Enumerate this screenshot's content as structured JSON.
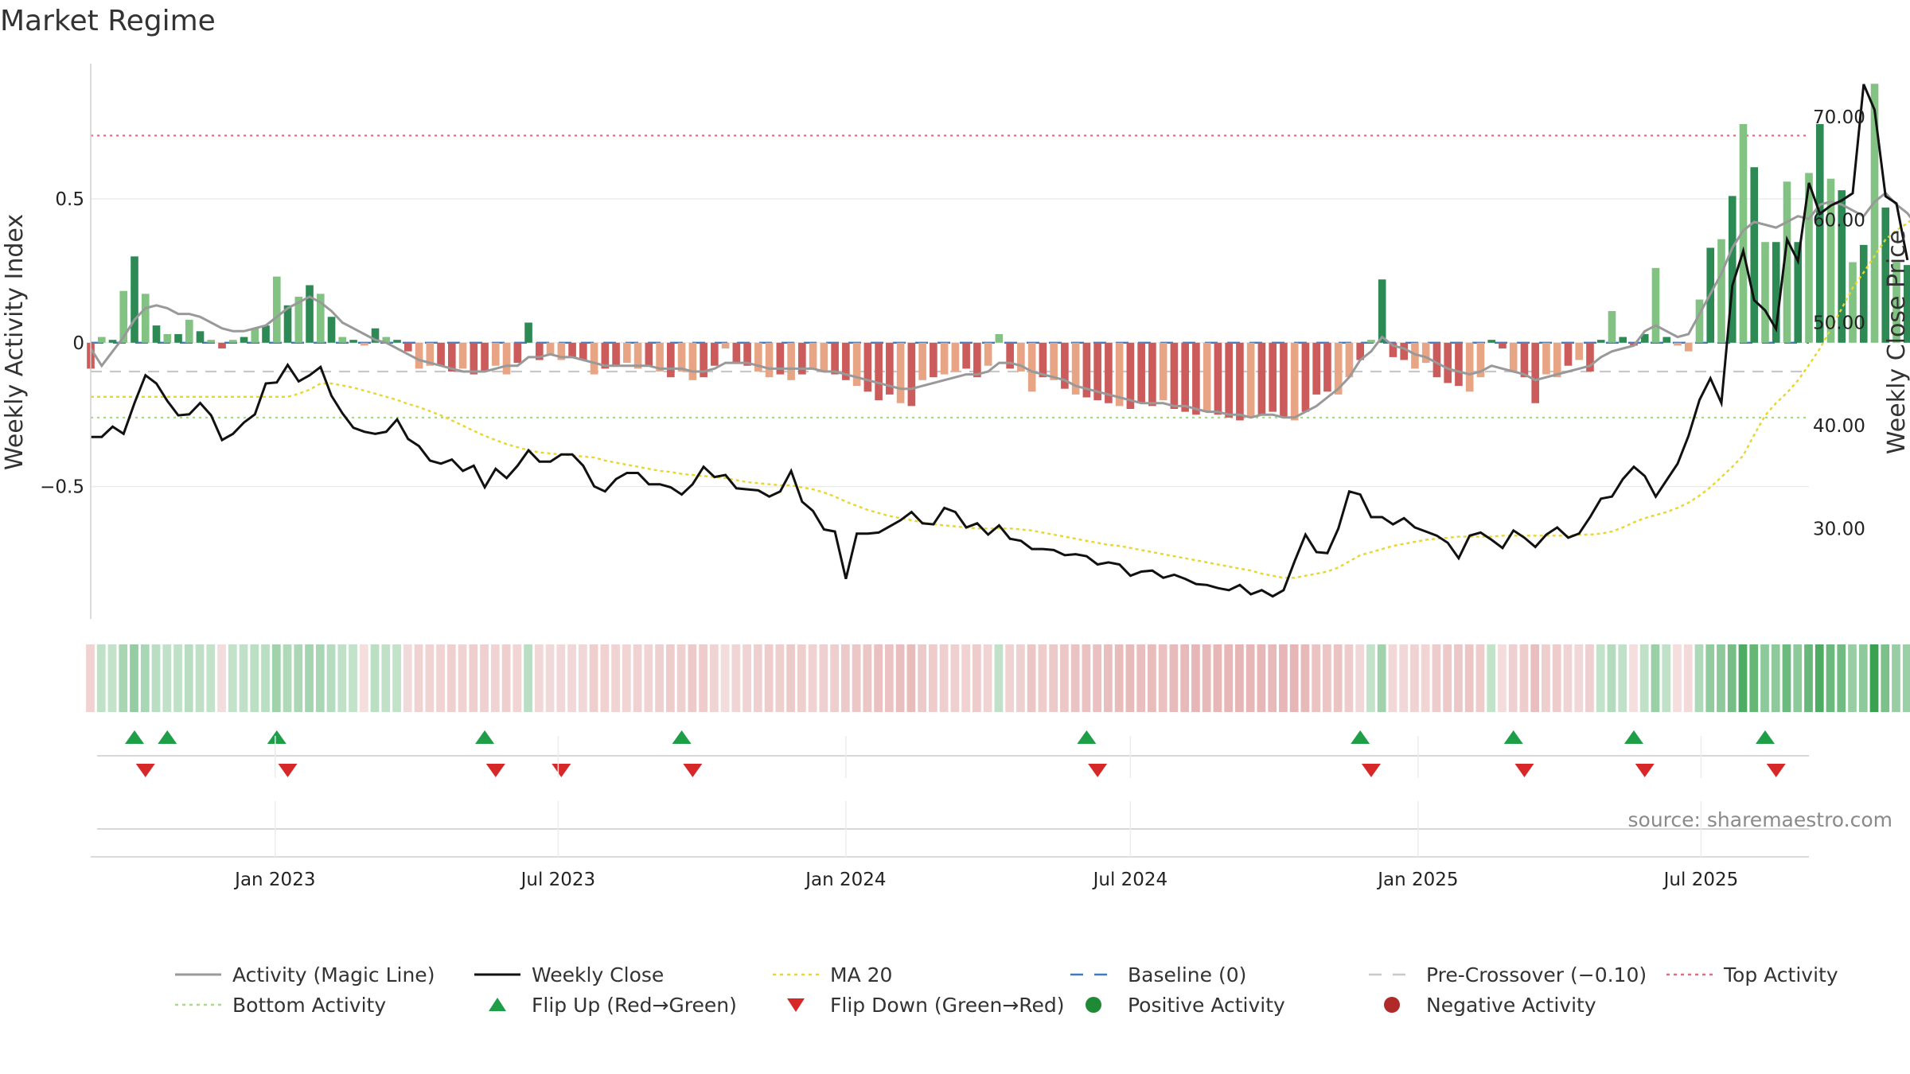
{
  "chart_data": {
    "type": "bar",
    "title": "Market Regime",
    "ylabel_left": "Weekly Activity Index",
    "ylabel_right": "Weekly Close Price",
    "source": "source: sharemaestro.com",
    "left_axis": {
      "ylim": [
        -0.96,
        0.97
      ],
      "ticks": [
        0.5,
        0,
        -0.5
      ],
      "tick_labels": [
        "0.5",
        "0",
        "−0.5"
      ]
    },
    "right_axis": {
      "ylim": [
        21.2,
        75.2
      ],
      "ticks": [
        70,
        60,
        50,
        40,
        30
      ],
      "tick_labels": [
        "70.00",
        "60.00",
        "50.00",
        "40.00",
        "30.00"
      ]
    },
    "x_axis": {
      "range": [
        "2022-09-05",
        "2025-09-08"
      ],
      "ticks": [
        "2023-01-01",
        "2023-07-01",
        "2024-01-01",
        "2024-07-01",
        "2025-01-01",
        "2025-07-01"
      ],
      "tick_labels": [
        "Jan 2023",
        "Jul 2023",
        "Jan 2024",
        "Jul 2024",
        "Jan 2025",
        "Jul 2025"
      ]
    },
    "reference_lines": {
      "baseline": 0,
      "pre_crossover": -0.1,
      "top_activity": 0.72,
      "bottom_activity": -0.26
    },
    "series": [
      {
        "name": "Weekly Activity Index (bars)",
        "x_start": "2022-09-05",
        "step_days": 7,
        "values": [
          -0.09,
          0.02,
          0.01,
          0.18,
          0.3,
          0.17,
          0.06,
          0.03,
          0.03,
          0.08,
          0.04,
          0.01,
          -0.02,
          0.01,
          0.02,
          0.05,
          0.06,
          0.23,
          0.13,
          0.16,
          0.2,
          0.17,
          0.09,
          0.02,
          0.01,
          -0.01,
          0.05,
          0.02,
          0.01,
          -0.03,
          -0.09,
          -0.08,
          -0.08,
          -0.1,
          -0.09,
          -0.11,
          -0.1,
          -0.08,
          -0.11,
          -0.07,
          0.07,
          -0.06,
          -0.04,
          -0.06,
          -0.05,
          -0.06,
          -0.11,
          -0.09,
          -0.08,
          -0.07,
          -0.09,
          -0.08,
          -0.1,
          -0.12,
          -0.1,
          -0.13,
          -0.12,
          -0.08,
          -0.02,
          -0.07,
          -0.08,
          -0.1,
          -0.12,
          -0.11,
          -0.13,
          -0.11,
          -0.09,
          -0.1,
          -0.11,
          -0.13,
          -0.15,
          -0.17,
          -0.2,
          -0.18,
          -0.21,
          -0.22,
          -0.13,
          -0.12,
          -0.11,
          -0.1,
          -0.09,
          -0.12,
          -0.08,
          0.03,
          -0.09,
          -0.1,
          -0.17,
          -0.12,
          -0.13,
          -0.16,
          -0.18,
          -0.19,
          -0.2,
          -0.21,
          -0.22,
          -0.23,
          -0.21,
          -0.22,
          -0.2,
          -0.23,
          -0.24,
          -0.25,
          -0.24,
          -0.25,
          -0.26,
          -0.27,
          -0.26,
          -0.25,
          -0.24,
          -0.26,
          -0.27,
          -0.24,
          -0.18,
          -0.17,
          -0.18,
          -0.12,
          -0.06,
          0.01,
          0.22,
          -0.05,
          -0.06,
          -0.09,
          -0.07,
          -0.12,
          -0.14,
          -0.15,
          -0.17,
          -0.12,
          0.01,
          -0.02,
          -0.1,
          -0.12,
          -0.21,
          -0.11,
          -0.12,
          -0.08,
          -0.06,
          -0.1,
          0.01,
          0.11,
          0.02,
          -0.01,
          0.03,
          0.26,
          0.02,
          -0.01,
          -0.03,
          0.15,
          0.33,
          0.36,
          0.51,
          0.76,
          0.61,
          0.35,
          0.35,
          0.56,
          0.35,
          0.59,
          0.76,
          0.57,
          0.53,
          0.28,
          0.34,
          0.9,
          0.47,
          0.28,
          0.27,
          0.18
        ]
      },
      {
        "name": "Activity (Magic Line)",
        "x_start": "2022-09-05",
        "step_days": 7,
        "values": [
          -0.02,
          -0.08,
          -0.03,
          0.02,
          0.08,
          0.12,
          0.13,
          0.12,
          0.1,
          0.1,
          0.09,
          0.07,
          0.05,
          0.04,
          0.04,
          0.05,
          0.06,
          0.09,
          0.12,
          0.14,
          0.16,
          0.14,
          0.11,
          0.07,
          0.05,
          0.03,
          0.01,
          0.0,
          -0.02,
          -0.04,
          -0.06,
          -0.07,
          -0.08,
          -0.09,
          -0.1,
          -0.1,
          -0.1,
          -0.09,
          -0.08,
          -0.08,
          -0.05,
          -0.05,
          -0.04,
          -0.05,
          -0.05,
          -0.06,
          -0.07,
          -0.08,
          -0.08,
          -0.08,
          -0.08,
          -0.08,
          -0.09,
          -0.09,
          -0.09,
          -0.1,
          -0.1,
          -0.09,
          -0.07,
          -0.07,
          -0.07,
          -0.08,
          -0.09,
          -0.09,
          -0.09,
          -0.09,
          -0.09,
          -0.1,
          -0.1,
          -0.11,
          -0.12,
          -0.13,
          -0.14,
          -0.15,
          -0.16,
          -0.16,
          -0.15,
          -0.14,
          -0.13,
          -0.12,
          -0.11,
          -0.11,
          -0.1,
          -0.07,
          -0.07,
          -0.08,
          -0.1,
          -0.11,
          -0.12,
          -0.13,
          -0.15,
          -0.16,
          -0.17,
          -0.18,
          -0.19,
          -0.2,
          -0.21,
          -0.21,
          -0.21,
          -0.22,
          -0.22,
          -0.23,
          -0.24,
          -0.24,
          -0.25,
          -0.25,
          -0.26,
          -0.25,
          -0.25,
          -0.26,
          -0.26,
          -0.24,
          -0.22,
          -0.19,
          -0.16,
          -0.12,
          -0.06,
          -0.03,
          0.02,
          -0.01,
          -0.02,
          -0.04,
          -0.05,
          -0.07,
          -0.09,
          -0.1,
          -0.11,
          -0.1,
          -0.08,
          -0.09,
          -0.1,
          -0.11,
          -0.13,
          -0.12,
          -0.11,
          -0.1,
          -0.09,
          -0.08,
          -0.05,
          -0.03,
          -0.02,
          -0.01,
          0.04,
          0.06,
          0.04,
          0.02,
          0.03,
          0.1,
          0.17,
          0.24,
          0.33,
          0.39,
          0.42,
          0.41,
          0.4,
          0.42,
          0.44,
          0.43,
          0.48,
          0.49,
          0.48,
          0.46,
          0.44,
          0.49,
          0.52,
          0.48,
          0.45,
          0.4
        ]
      },
      {
        "name": "Weekly Close",
        "x_start": "2022-09-05",
        "step_days": 7,
        "values": [
          38.9,
          38.9,
          39.9,
          39.2,
          42.2,
          44.9,
          44.1,
          42.4,
          41.0,
          41.1,
          42.2,
          41.0,
          38.6,
          39.2,
          40.3,
          41.1,
          44.1,
          44.2,
          45.9,
          44.3,
          44.9,
          45.7,
          42.9,
          41.2,
          39.8,
          39.4,
          39.2,
          39.4,
          40.6,
          38.7,
          38.0,
          36.6,
          36.3,
          36.7,
          35.6,
          36.1,
          34.0,
          35.8,
          34.9,
          36.1,
          37.6,
          36.5,
          36.5,
          37.2,
          37.2,
          36.1,
          34.1,
          33.6,
          34.8,
          35.4,
          35.4,
          34.3,
          34.3,
          34.0,
          33.3,
          34.3,
          36.0,
          35.0,
          35.2,
          33.9,
          33.8,
          33.7,
          33.1,
          33.6,
          35.6,
          32.6,
          31.7,
          29.9,
          29.7,
          25.1,
          29.5,
          29.5,
          29.6,
          30.2,
          30.8,
          31.6,
          30.5,
          30.4,
          32.0,
          31.6,
          30.1,
          30.5,
          29.4,
          30.3,
          29.0,
          28.8,
          28.0,
          28.0,
          27.9,
          27.4,
          27.5,
          27.3,
          26.5,
          26.7,
          26.5,
          25.4,
          25.8,
          25.9,
          25.2,
          25.5,
          25.1,
          24.6,
          24.5,
          24.2,
          24.0,
          24.5,
          23.6,
          24.0,
          23.4,
          24.0,
          26.8,
          29.4,
          27.7,
          27.6,
          30.0,
          33.6,
          33.3,
          31.1,
          31.1,
          30.4,
          31.0,
          30.1,
          29.7,
          29.3,
          28.6,
          27.1,
          29.3,
          29.6,
          28.9,
          28.1,
          29.8,
          29.1,
          28.2,
          29.4,
          30.1,
          29.1,
          29.5,
          31.1,
          32.9,
          33.1,
          34.8,
          36.0,
          35.1,
          33.1,
          34.7,
          36.3,
          39.0,
          42.5,
          44.6,
          42.2,
          53.6,
          57.0,
          52.2,
          51.2,
          49.4,
          58.1,
          56.0,
          63.6,
          60.6,
          61.4,
          61.9,
          62.6,
          73.2,
          70.7,
          62.3,
          61.6,
          56.1
        ]
      },
      {
        "name": "MA 20",
        "x_start": "2022-09-05",
        "step_days": 7,
        "values": [
          42.8,
          42.8,
          42.8,
          42.8,
          42.8,
          42.8,
          42.8,
          42.8,
          42.8,
          42.8,
          42.8,
          42.8,
          42.8,
          42.8,
          42.8,
          42.8,
          42.8,
          42.8,
          42.8,
          43.1,
          43.5,
          44.1,
          44.1,
          43.9,
          43.7,
          43.4,
          43.1,
          42.8,
          42.5,
          42.1,
          41.8,
          41.4,
          41.0,
          40.5,
          40.0,
          39.5,
          39.0,
          38.6,
          38.2,
          37.9,
          37.6,
          37.4,
          37.3,
          37.2,
          37.1,
          37.0,
          36.9,
          36.6,
          36.4,
          36.2,
          36.0,
          35.8,
          35.6,
          35.5,
          35.3,
          35.2,
          35.1,
          35.0,
          34.9,
          34.7,
          34.5,
          34.4,
          34.3,
          34.2,
          34.2,
          34.0,
          33.8,
          33.5,
          33.1,
          32.6,
          32.2,
          31.8,
          31.5,
          31.2,
          31.0,
          30.8,
          30.6,
          30.4,
          30.3,
          30.2,
          30.1,
          30.0,
          30.0,
          30.0,
          30.0,
          29.9,
          29.8,
          29.6,
          29.4,
          29.2,
          29.0,
          28.8,
          28.6,
          28.4,
          28.3,
          28.1,
          27.9,
          27.7,
          27.5,
          27.3,
          27.1,
          26.9,
          26.7,
          26.5,
          26.3,
          26.1,
          25.9,
          25.6,
          25.4,
          25.2,
          25.2,
          25.4,
          25.6,
          25.8,
          26.2,
          26.8,
          27.4,
          27.7,
          28.0,
          28.3,
          28.5,
          28.7,
          28.9,
          29.0,
          29.1,
          29.2,
          29.2,
          29.2,
          29.2,
          29.3,
          29.3,
          29.3,
          29.3,
          29.3,
          29.3,
          29.3,
          29.4,
          29.4,
          29.5,
          29.7,
          30.1,
          30.6,
          31.0,
          31.3,
          31.6,
          32.0,
          32.5,
          33.2,
          34.0,
          35.0,
          36.0,
          37.1,
          39.1,
          41.0,
          42.2,
          43.2,
          44.4,
          45.9,
          47.5,
          49.4,
          51.4,
          53.4,
          54.9,
          56.5,
          58.1,
          59.0,
          59.7,
          60.6,
          60.6
        ]
      }
    ],
    "flip_up": [
      "2022-10-03",
      "2022-10-24",
      "2023-01-02",
      "2023-05-15",
      "2023-09-18",
      "2024-06-03",
      "2024-11-25",
      "2025-03-03",
      "2025-05-19",
      "2025-08-11"
    ],
    "flip_down": [
      "2022-10-10",
      "2023-01-09",
      "2023-05-22",
      "2023-07-03",
      "2023-09-25",
      "2024-06-10",
      "2024-12-02",
      "2025-03-10",
      "2025-05-26",
      "2025-08-18"
    ],
    "legend": [
      {
        "label": "Activity (Magic Line)",
        "kind": "line",
        "color": "#999999"
      },
      {
        "label": "Weekly Close",
        "kind": "line",
        "color": "#111111"
      },
      {
        "label": "MA 20",
        "kind": "dotted",
        "color": "#e8d62f"
      },
      {
        "label": "Baseline (0)",
        "kind": "dashed",
        "color": "#3b7bbf"
      },
      {
        "label": "Pre-Crossover (−0.10)",
        "kind": "dashed",
        "color": "#c8c8c8"
      },
      {
        "label": "Top Activity",
        "kind": "dotted",
        "color": "#e06b80"
      },
      {
        "label": "Bottom Activity",
        "kind": "dotted",
        "color": "#a9d98a"
      },
      {
        "label": "Flip Up (Red→Green)",
        "kind": "triangle-up",
        "color": "#1f9e48"
      },
      {
        "label": "Flip Down (Green→Red)",
        "kind": "triangle-down",
        "color": "#d62828"
      },
      {
        "label": "Positive Activity",
        "kind": "circle",
        "color": "#1f8a36"
      },
      {
        "label": "Negative Activity",
        "kind": "circle",
        "color": "#b02a2a"
      }
    ],
    "colors": {
      "pos_strong": "#2e8a55",
      "pos_light": "#82c283",
      "neg_strong": "#cc5b5b",
      "neg_light": "#e8a585",
      "band_pos_base": "#2f9c48",
      "band_neg_base": "#c45050"
    }
  }
}
